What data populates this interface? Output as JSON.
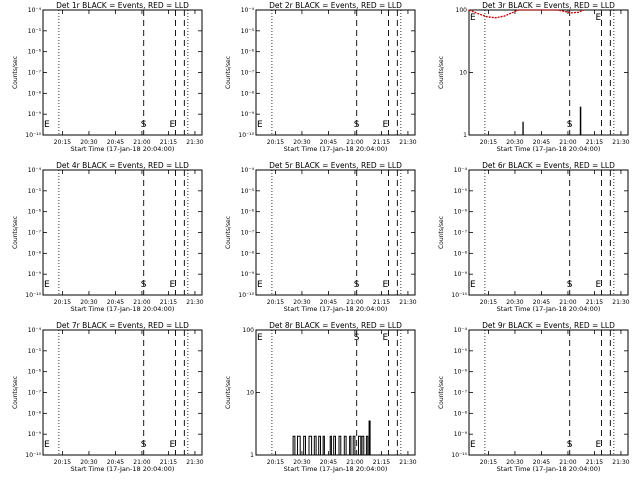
{
  "chart_data": [
    {
      "type": "line",
      "title": "Det 1r BLACK = Events, RED = LLD",
      "xlabel": "Start Time (17-Jan-18 20:04:00)",
      "ylabel": "Counts/sec",
      "scale": "log",
      "ylim": [
        1e-10,
        0.0001
      ],
      "ytick_labels": [
        "10⁻¹⁰",
        "10⁻⁹",
        "10⁻⁸",
        "10⁻⁷",
        "10⁻⁶",
        "10⁻⁵",
        "10⁻⁴"
      ],
      "xtick_labels": [
        "20:15",
        "20:30",
        "20:45",
        "21:00",
        "21:15",
        "21:30"
      ],
      "markers": [
        "E",
        "S",
        "E"
      ],
      "series": []
    },
    {
      "type": "line",
      "title": "Det 2r BLACK = Events, RED = LLD",
      "xlabel": "Start Time (17-Jan-18 20:04:00)",
      "ylabel": "Counts/sec",
      "scale": "log",
      "ylim": [
        1e-10,
        0.0001
      ],
      "ytick_labels": [
        "10⁻¹⁰",
        "10⁻⁹",
        "10⁻⁸",
        "10⁻⁷",
        "10⁻⁶",
        "10⁻⁵",
        "10⁻⁴"
      ],
      "xtick_labels": [
        "20:15",
        "20:30",
        "20:45",
        "21:00",
        "21:15",
        "21:30"
      ],
      "markers": [
        "E",
        "S",
        "E"
      ],
      "series": []
    },
    {
      "type": "line",
      "title": "Det 3r BLACK = Events, RED = LLD",
      "xlabel": "Start Time (17-Jan-18 20:04:00)",
      "ylabel": "Counts/sec",
      "scale": "log",
      "ylim": [
        1,
        100
      ],
      "ytick_labels": [
        "1",
        "10",
        "100"
      ],
      "xtick_labels": [
        "20:15",
        "20:30",
        "20:45",
        "21:00",
        "21:15",
        "21:30"
      ],
      "markers": [
        "E",
        "S",
        "E"
      ],
      "series": [
        {
          "color": "#000000",
          "points": [
            [
              30.5,
              1
            ],
            [
              30.5,
              1.6
            ],
            [
              30.7,
              1.6
            ],
            [
              30.7,
              1
            ],
            [
              63,
              1
            ],
            [
              63,
              2.8
            ],
            [
              63.3,
              2.8
            ],
            [
              63.3,
              1
            ]
          ]
        },
        {
          "color": "#cc0000",
          "points": [
            [
              0,
              100
            ],
            [
              5,
              88
            ],
            [
              10,
              78
            ],
            [
              15,
              75
            ],
            [
              20,
              80
            ],
            [
              25,
              92
            ],
            [
              28,
              100
            ],
            [
              50,
              100
            ],
            [
              54,
              95
            ],
            [
              58,
              90
            ],
            [
              62,
              92
            ],
            [
              65,
              100
            ]
          ]
        }
      ]
    },
    {
      "type": "line",
      "title": "Det 4r BLACK = Events, RED = LLD",
      "xlabel": "Start Time (17-Jan-18 20:04:00)",
      "ylabel": "Counts/sec",
      "scale": "log",
      "ylim": [
        1e-10,
        0.0001
      ],
      "ytick_labels": [
        "10⁻¹⁰",
        "10⁻⁹",
        "10⁻⁸",
        "10⁻⁷",
        "10⁻⁶",
        "10⁻⁵",
        "10⁻⁴"
      ],
      "xtick_labels": [
        "20:15",
        "20:30",
        "20:45",
        "21:00",
        "21:15",
        "21:30"
      ],
      "markers": [
        "E",
        "S",
        "E"
      ],
      "series": []
    },
    {
      "type": "line",
      "title": "Det 5r BLACK = Events, RED = LLD",
      "xlabel": "Start Time (17-Jan-18 20:04:00)",
      "ylabel": "Counts/sec",
      "scale": "log",
      "ylim": [
        1e-10,
        0.0001
      ],
      "ytick_labels": [
        "10⁻¹⁰",
        "10⁻⁹",
        "10⁻⁸",
        "10⁻⁷",
        "10⁻⁶",
        "10⁻⁵",
        "10⁻⁴"
      ],
      "xtick_labels": [
        "20:15",
        "20:30",
        "20:45",
        "21:00",
        "21:15",
        "21:30"
      ],
      "markers": [
        "E",
        "S",
        "E"
      ],
      "series": []
    },
    {
      "type": "line",
      "title": "Det 6r BLACK = Events, RED = LLD",
      "xlabel": "Start Time (17-Jan-18 20:04:00)",
      "ylabel": "Counts/sec",
      "scale": "log",
      "ylim": [
        1e-10,
        0.0001
      ],
      "ytick_labels": [
        "10⁻¹⁰",
        "10⁻⁹",
        "10⁻⁸",
        "10⁻⁷",
        "10⁻⁶",
        "10⁻⁵",
        "10⁻⁴"
      ],
      "xtick_labels": [
        "20:15",
        "20:30",
        "20:45",
        "21:00",
        "21:15",
        "21:30"
      ],
      "markers": [
        "E",
        "S",
        "E"
      ],
      "series": []
    },
    {
      "type": "line",
      "title": "Det 7r BLACK = Events, RED = LLD",
      "xlabel": "Start Time (17-Jan-18 20:04:00)",
      "ylabel": "Counts/sec",
      "scale": "log",
      "ylim": [
        1e-10,
        0.0001
      ],
      "ytick_labels": [
        "10⁻¹⁰",
        "10⁻⁹",
        "10⁻⁸",
        "10⁻⁷",
        "10⁻⁶",
        "10⁻⁵",
        "10⁻⁴"
      ],
      "xtick_labels": [
        "20:15",
        "20:30",
        "20:45",
        "21:00",
        "21:15",
        "21:30"
      ],
      "markers": [
        "E",
        "S",
        "E"
      ],
      "series": []
    },
    {
      "type": "line",
      "title": "Det 8r BLACK = Events, RED = LLD",
      "xlabel": "Start Time (17-Jan-18 20:04:00)",
      "ylabel": "Counts/sec",
      "scale": "log",
      "ylim": [
        1,
        100
      ],
      "ytick_labels": [
        "1",
        "10",
        "100"
      ],
      "xtick_labels": [
        "20:15",
        "20:30",
        "20:45",
        "21:00",
        "21:15",
        "21:30"
      ],
      "markers": [
        "E",
        "S",
        "E"
      ],
      "series": [
        {
          "color": "#000000",
          "points": [
            [
              21,
              1
            ],
            [
              21,
              2
            ],
            [
              22,
              2
            ],
            [
              22,
              1
            ],
            [
              23.5,
              1
            ],
            [
              23.5,
              2
            ],
            [
              25,
              2
            ],
            [
              25,
              1
            ],
            [
              27,
              1
            ],
            [
              27,
              2
            ],
            [
              28,
              2
            ],
            [
              28,
              1
            ],
            [
              30,
              1
            ],
            [
              30,
              2
            ],
            [
              31.5,
              2
            ],
            [
              31.5,
              1
            ],
            [
              33,
              1
            ],
            [
              33,
              2
            ],
            [
              34,
              2
            ],
            [
              34,
              1
            ],
            [
              35.5,
              1
            ],
            [
              35.5,
              2
            ],
            [
              36.5,
              2
            ],
            [
              36.5,
              1
            ],
            [
              38,
              1
            ],
            [
              38,
              2
            ],
            [
              38.7,
              2
            ],
            [
              38.7,
              1
            ],
            [
              42,
              1
            ],
            [
              42,
              2
            ],
            [
              42.7,
              2
            ],
            [
              42.7,
              1
            ],
            [
              44,
              1
            ],
            [
              44,
              2
            ],
            [
              45,
              2
            ],
            [
              45,
              1
            ],
            [
              47,
              1
            ],
            [
              47,
              2
            ],
            [
              48,
              2
            ],
            [
              48,
              1
            ],
            [
              50,
              1
            ],
            [
              50,
              2
            ],
            [
              51,
              2
            ],
            [
              51,
              1
            ],
            [
              53,
              1
            ],
            [
              53,
              2
            ],
            [
              53.7,
              2
            ],
            [
              53.7,
              1
            ],
            [
              55,
              1
            ],
            [
              55,
              2
            ],
            [
              56,
              2
            ],
            [
              56,
              1
            ],
            [
              58,
              1
            ],
            [
              58,
              2
            ],
            [
              59.3,
              2
            ],
            [
              59.3,
              1
            ],
            [
              60,
              1
            ],
            [
              60,
              2
            ],
            [
              61,
              2
            ],
            [
              61,
              1
            ],
            [
              62.5,
              1
            ],
            [
              62.5,
              2
            ],
            [
              63.3,
              2
            ],
            [
              63.3,
              1
            ],
            [
              64,
              1
            ],
            [
              64,
              3.5
            ],
            [
              64.6,
              3.5
            ],
            [
              64.6,
              1
            ]
          ]
        }
      ]
    },
    {
      "type": "line",
      "title": "Det 9r BLACK = Events, RED = LLD",
      "xlabel": "Start Time (17-Jan-18 20:04:00)",
      "ylabel": "Counts/sec",
      "scale": "log",
      "ylim": [
        1e-10,
        0.0001
      ],
      "ytick_labels": [
        "10⁻¹⁰",
        "10⁻⁹",
        "10⁻⁸",
        "10⁻⁷",
        "10⁻⁶",
        "10⁻⁵",
        "10⁻⁴"
      ],
      "xtick_labels": [
        "20:15",
        "20:30",
        "20:45",
        "21:00",
        "21:15",
        "21:30"
      ],
      "markers": [
        "E",
        "S",
        "E"
      ],
      "series": []
    }
  ]
}
